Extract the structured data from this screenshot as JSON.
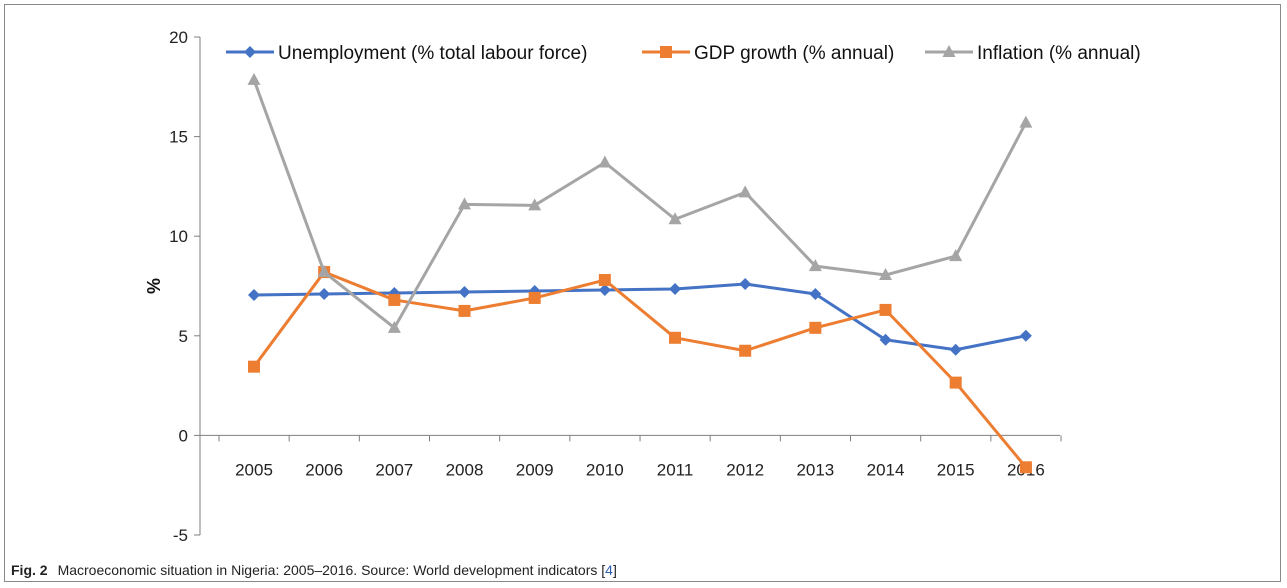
{
  "chart_data": {
    "type": "line",
    "categories": [
      "2005",
      "2006",
      "2007",
      "2008",
      "2009",
      "2010",
      "2011",
      "2012",
      "2013",
      "2014",
      "2015",
      "2016"
    ],
    "series": [
      {
        "name": "Unemployment (% total labour force)",
        "color": "#4472c4",
        "marker": "diamond",
        "values": [
          7.05,
          7.1,
          7.15,
          7.2,
          7.25,
          7.3,
          7.35,
          7.6,
          7.1,
          4.8,
          4.3,
          5.0
        ]
      },
      {
        "name": "GDP growth (% annual)",
        "color": "#ed7d31",
        "marker": "square",
        "values": [
          3.45,
          8.2,
          6.8,
          6.25,
          6.9,
          7.8,
          4.9,
          4.25,
          5.4,
          6.3,
          2.65,
          -1.6
        ]
      },
      {
        "name": "Inflation (% annual)",
        "color": "#a5a5a5",
        "marker": "triangle",
        "values": [
          17.85,
          8.2,
          5.4,
          11.6,
          11.55,
          13.7,
          10.85,
          12.2,
          8.5,
          8.05,
          9.0,
          15.7
        ]
      }
    ],
    "ylabel": "%",
    "ylim": [
      -5,
      20
    ],
    "yticks": [
      -5,
      0,
      5,
      10,
      15,
      20
    ],
    "legend": "top"
  },
  "caption": {
    "label": "Fig. 2",
    "text": "Macroeconomic situation in Nigeria: 2005–2016. Source: World development indicators [",
    "ref": "4",
    "close": "]"
  }
}
